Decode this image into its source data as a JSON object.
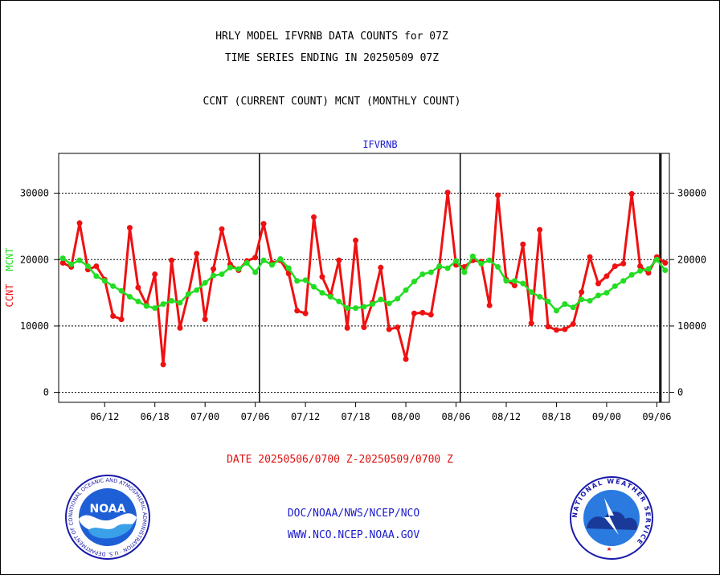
{
  "header": {
    "title_line1": "HRLY MODEL IFVRNB DATA COUNTS for 07Z",
    "title_line2": "TIME SERIES ENDING IN 20250509 07Z",
    "title_line3": "CCNT (CURRENT COUNT) MCNT (MONTHLY COUNT)"
  },
  "footer": {
    "date_range": "DATE 20250506/0700 Z-20250509/0700 Z",
    "link1": "DOC/NOAA/NWS/NCEP/NCO",
    "link2": "WWW.NCO.NCEP.NOAA.GOV"
  },
  "logos": {
    "noaa_text": "NOAA",
    "noaa_ring": "NATIONAL OCEANIC AND ATMOSPHERIC ADMINISTRATION · U.S. DEPARTMENT OF COMMERCE",
    "nws_ring": "NATIONAL WEATHER SERVICE"
  },
  "colors": {
    "ccnt": "#ee1111",
    "mcnt": "#22dd22",
    "label_blue": "#1a1acc",
    "axis": "#000000"
  },
  "chart_data": {
    "type": "line",
    "title": "IFVRNB",
    "ylabel_left": "CCNT",
    "ylabel_right": "MCNT",
    "ylim": [
      -1500,
      36000
    ],
    "yticks": [
      0,
      10000,
      20000,
      30000
    ],
    "ytick_labels": [
      "0",
      "10000",
      "20000",
      "30000"
    ],
    "xtick_labels": [
      "06/12",
      "06/18",
      "07/00",
      "07/06",
      "07/12",
      "07/18",
      "08/00",
      "08/06",
      "08/12",
      "08/18",
      "09/00",
      "09/06"
    ],
    "xtick_index": [
      5,
      11,
      17,
      23,
      29,
      35,
      41,
      47,
      53,
      59,
      65,
      71
    ],
    "day_separators_index": [
      23.5,
      47.5,
      71.5
    ],
    "grid": "horizontal dotted",
    "series": [
      {
        "name": "CCNT",
        "color": "#ee1111",
        "values": [
          19500,
          18900,
          25500,
          18500,
          19000,
          17000,
          11500,
          11000,
          24800,
          15800,
          13200,
          17800,
          4200,
          19900,
          9700,
          14800,
          20900,
          11000,
          18600,
          24600,
          19300,
          18400,
          19800,
          20300,
          25400,
          19500,
          19900,
          17900,
          12300,
          11900,
          26400,
          17400,
          14600,
          19900,
          9700,
          22900,
          9800,
          13500,
          18800,
          9500,
          9800,
          5000,
          11900,
          12000,
          11700,
          18900,
          30100,
          19200,
          18900,
          19900,
          19700,
          13100,
          29700,
          17000,
          16100,
          22300,
          10400,
          24500,
          9900,
          9400,
          9500,
          10300,
          15100,
          20400,
          16400,
          17500,
          19000,
          19400,
          29900,
          19000,
          18000,
          20400,
          19500
        ]
      },
      {
        "name": "MCNT",
        "color": "#22dd22",
        "values": [
          20200,
          19300,
          19900,
          19000,
          17500,
          16800,
          16000,
          15300,
          14400,
          13700,
          13000,
          12700,
          13300,
          13800,
          13500,
          14800,
          15400,
          16500,
          17600,
          17800,
          18800,
          18600,
          19500,
          18100,
          19900,
          19200,
          20100,
          18700,
          16800,
          16900,
          15900,
          15000,
          14400,
          13700,
          12700,
          12700,
          12900,
          13300,
          14000,
          13400,
          14100,
          15400,
          16700,
          17800,
          18100,
          19000,
          18700,
          19800,
          18100,
          20500,
          19400,
          19900,
          18900,
          16800,
          16800,
          16400,
          15100,
          14400,
          13700,
          12300,
          13300,
          12800,
          14000,
          13800,
          14600,
          15000,
          16000,
          16800,
          17700,
          18300,
          18600,
          20000,
          18400
        ]
      }
    ]
  }
}
